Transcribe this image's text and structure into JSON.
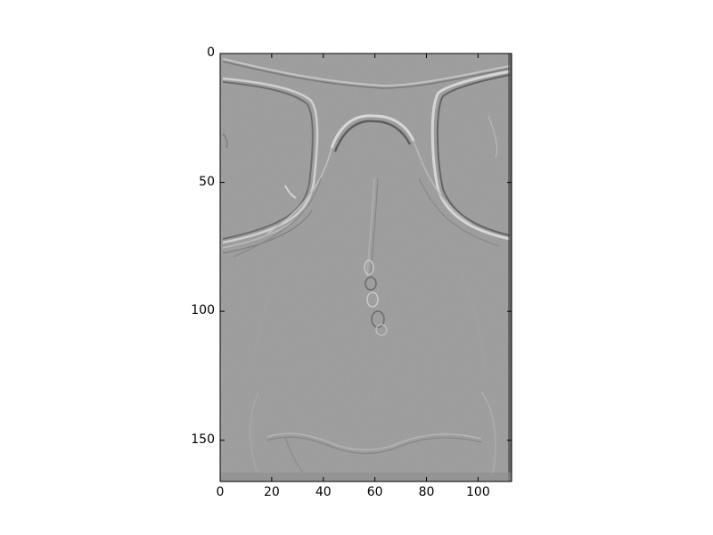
{
  "figure": {
    "image_description_icon": "emboss-filtered-grayscale-image-icon",
    "colors": {
      "background": "#ffffff",
      "image_base_gray": "#9a9a9a",
      "axes_frame": "#000000"
    }
  },
  "axes": {
    "x": {
      "range": [
        0,
        113
      ],
      "ticks": [
        0,
        20,
        40,
        60,
        80,
        100
      ],
      "tick_labels": [
        "0",
        "20",
        "40",
        "60",
        "80",
        "100"
      ]
    },
    "y": {
      "range": [
        0,
        166
      ],
      "inverted": true,
      "ticks": [
        0,
        50,
        100,
        150
      ],
      "tick_labels": [
        "0",
        "50",
        "100",
        "150"
      ]
    }
  }
}
